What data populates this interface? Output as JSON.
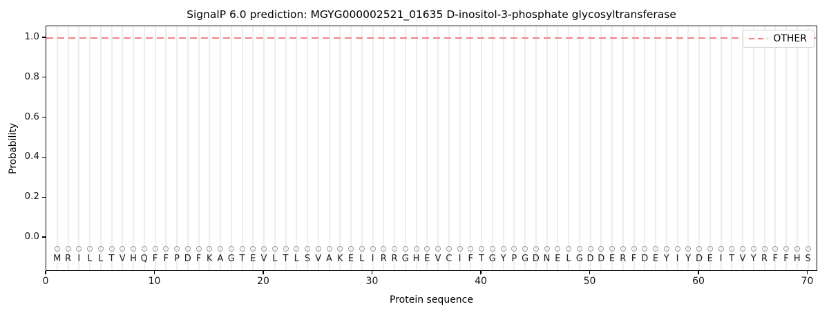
{
  "figure": {
    "title": "SignalP 6.0 prediction: MGYG000002521_01635 D-inositol-3-phosphate glycosyltransferase",
    "xlabel": "Protein sequence",
    "ylabel": "Probability",
    "legend": {
      "label": "OTHER"
    }
  },
  "colors": {
    "other_line": "#f28282",
    "gridline": "#ededed",
    "marker_outline": "#9a9a9a",
    "spine": "#000000",
    "text": "#161616",
    "legend_border": "#d2d2d2"
  },
  "chart_data": {
    "type": "line",
    "title": "SignalP 6.0 prediction: MGYG000002521_01635 D-inositol-3-phosphate glycosyltransferase",
    "xlabel": "Protein sequence",
    "ylabel": "Probability",
    "x_ticks": [
      0,
      10,
      20,
      30,
      40,
      50,
      60,
      70
    ],
    "y_ticks": [
      "0.0",
      "0.2",
      "0.4",
      "0.6",
      "0.8",
      "1.0"
    ],
    "xlim": [
      0,
      71
    ],
    "ylim": [
      -0.17,
      1.06
    ],
    "grid": "vertical line at every residue position, no horizontal gridlines",
    "legend_position": "upper right",
    "sequence": "MRILLTVHQFFPDFKAGTEVLTLSVAKELIRRGHEVCIFTGYPGDNELGDDERFDEYIYDEITVYRFFHS",
    "residue_positions_start": 1,
    "residue_positions_end": 70,
    "residue_marker": {
      "shape": "open-circle",
      "y": -0.055
    },
    "series": [
      {
        "name": "OTHER",
        "line_style": "dashed",
        "color": "#f28282",
        "x_start": 1,
        "x_step": 1,
        "values": [
          1.0,
          1.0,
          1.0,
          1.0,
          1.0,
          1.0,
          1.0,
          1.0,
          1.0,
          1.0,
          1.0,
          1.0,
          1.0,
          1.0,
          1.0,
          1.0,
          1.0,
          1.0,
          1.0,
          1.0,
          1.0,
          1.0,
          1.0,
          1.0,
          1.0,
          1.0,
          1.0,
          1.0,
          1.0,
          1.0,
          1.0,
          1.0,
          1.0,
          1.0,
          1.0,
          1.0,
          1.0,
          1.0,
          1.0,
          1.0,
          1.0,
          1.0,
          1.0,
          1.0,
          1.0,
          1.0,
          1.0,
          1.0,
          1.0,
          1.0,
          1.0,
          1.0,
          1.0,
          1.0,
          1.0,
          1.0,
          1.0,
          1.0,
          1.0,
          1.0,
          1.0,
          1.0,
          1.0,
          1.0,
          1.0,
          1.0,
          1.0,
          1.0,
          1.0,
          1.0
        ]
      }
    ]
  }
}
